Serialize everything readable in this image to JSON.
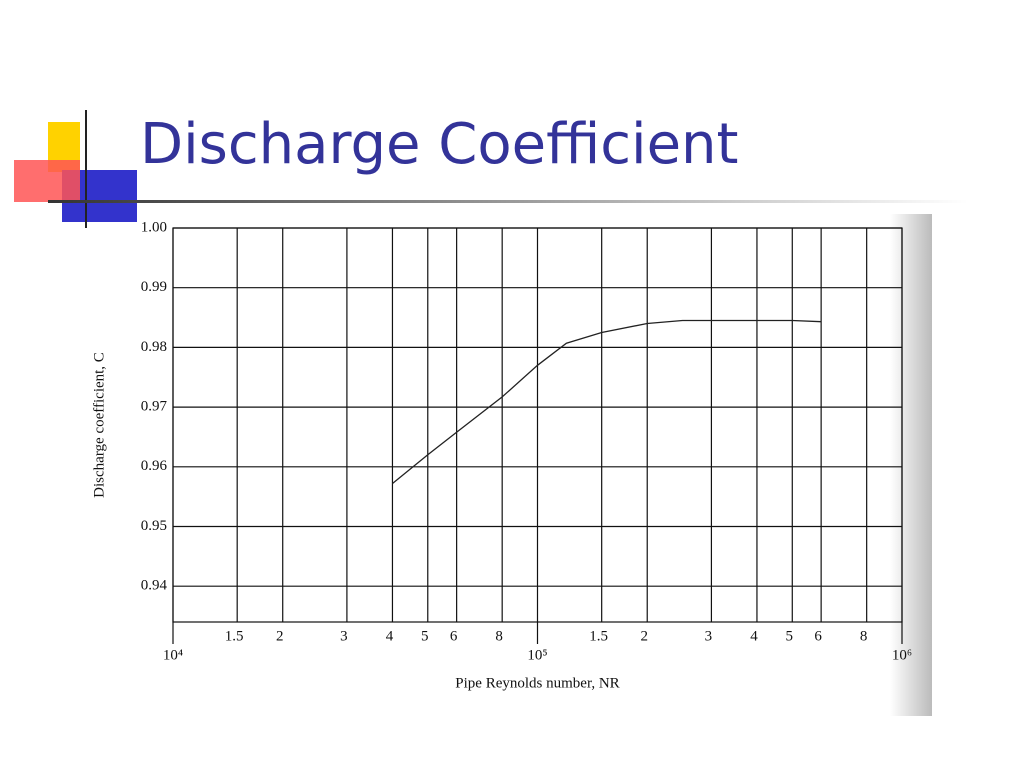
{
  "slide": {
    "title": "Discharge Coefficient"
  },
  "chart_data": {
    "type": "line",
    "xlabel": "Pipe Reynolds number, NR",
    "ylabel": "Discharge coefficient, C",
    "xscale": "log",
    "grid": true,
    "xlim": [
      10000,
      1000000
    ],
    "ylim": [
      0.934,
      1.0
    ],
    "xticks": [
      {
        "value": 10000,
        "label": "10⁴"
      },
      {
        "value": 15000,
        "label": "1.5"
      },
      {
        "value": 20000,
        "label": "2"
      },
      {
        "value": 30000,
        "label": "3"
      },
      {
        "value": 40000,
        "label": "4"
      },
      {
        "value": 50000,
        "label": "5"
      },
      {
        "value": 60000,
        "label": "6"
      },
      {
        "value": 80000,
        "label": "8"
      },
      {
        "value": 100000,
        "label": "10⁵"
      },
      {
        "value": 150000,
        "label": "1.5"
      },
      {
        "value": 200000,
        "label": "2"
      },
      {
        "value": 300000,
        "label": "3"
      },
      {
        "value": 400000,
        "label": "4"
      },
      {
        "value": 500000,
        "label": "5"
      },
      {
        "value": 600000,
        "label": "6"
      },
      {
        "value": 800000,
        "label": "8"
      },
      {
        "value": 1000000,
        "label": "10⁶"
      }
    ],
    "yticks": [
      {
        "value": 1,
        "label": "1.00"
      },
      0.99,
      0.98,
      0.97,
      0.96,
      0.95,
      0.94
    ],
    "series": [
      {
        "color": "#222222",
        "x": [
          40000,
          50000,
          60000,
          80000,
          100000,
          120000,
          150000,
          200000,
          250000,
          300000,
          500000,
          600000
        ],
        "values": [
          0.9572,
          0.962,
          0.9658,
          0.9717,
          0.977,
          0.9807,
          0.9825,
          0.984,
          0.9845,
          0.9845,
          0.9845,
          0.9843
        ]
      }
    ]
  }
}
